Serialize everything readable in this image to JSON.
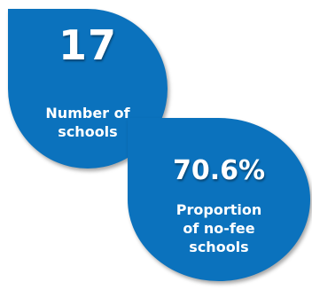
{
  "accent_color": "#0b72bd",
  "stats": [
    {
      "value": "17",
      "label": "Number of\nschools"
    },
    {
      "value": "70.6%",
      "label": "Proportion\nof no-fee\nschools"
    }
  ]
}
